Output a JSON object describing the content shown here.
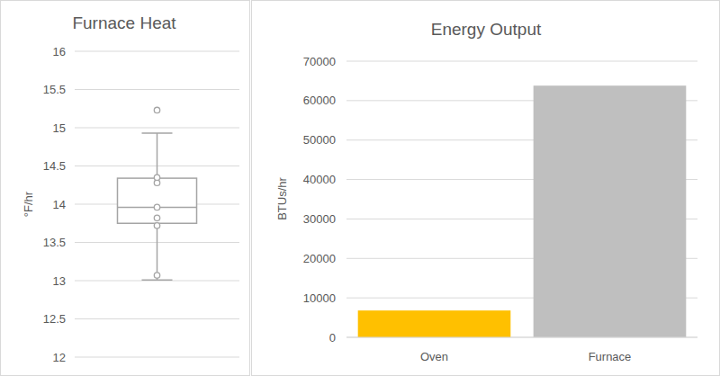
{
  "chart_data": [
    {
      "type": "box",
      "title": "Furnace Heat",
      "y_label": "°F/hr",
      "stats": {
        "min": 13.01,
        "q1": 13.75,
        "median": 13.96,
        "q3": 14.34,
        "max": 14.93
      },
      "points": [
        13.07,
        13.72,
        13.82,
        13.96,
        14.28,
        14.35,
        15.23
      ],
      "color": "#a5a5a5",
      "ylim": [
        12,
        16
      ],
      "yticks": [
        12,
        12.5,
        13,
        13.5,
        14,
        14.5,
        15,
        15.5,
        16
      ],
      "grid": true
    },
    {
      "type": "bar",
      "title": "Energy Output",
      "y_label": "BTUs/hr",
      "categories": [
        "Oven",
        "Furnace"
      ],
      "values": [
        6800,
        63800
      ],
      "colors": [
        "#ffc000",
        "#bfbfbf"
      ],
      "ylim": [
        0,
        70000
      ],
      "yticks": [
        0,
        10000,
        20000,
        30000,
        40000,
        50000,
        60000,
        70000
      ],
      "grid": true
    }
  ]
}
